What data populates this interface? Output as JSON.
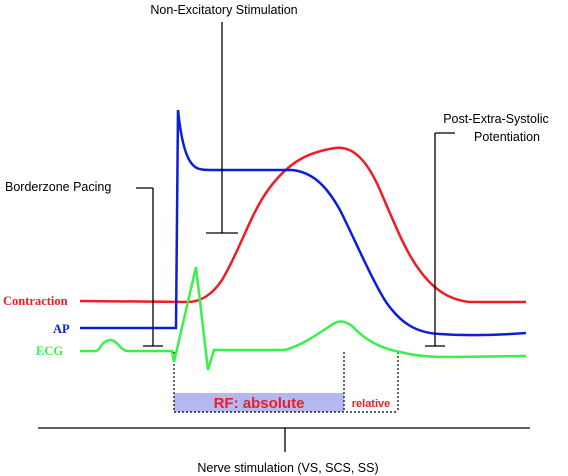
{
  "colors": {
    "contraction": "#ee1c24",
    "ap": "#0a1fd6",
    "ecg": "#3af04a",
    "rf_box": "#b4b8f0",
    "line": "#000000"
  },
  "labels": {
    "non_excitatory": "Non-Excitatory Stimulation",
    "post_extra_line1": "Post-Extra-Systolic",
    "post_extra_line2": "Potentiation",
    "borderzone": "Borderzone Pacing",
    "contraction": "Contraction",
    "ap": "AP",
    "ecg": "ECG",
    "rf_absolute": "RF: absolute",
    "rf_relative": "relative",
    "nerve": "Nerve stimulation (VS, SCS, SS)"
  }
}
